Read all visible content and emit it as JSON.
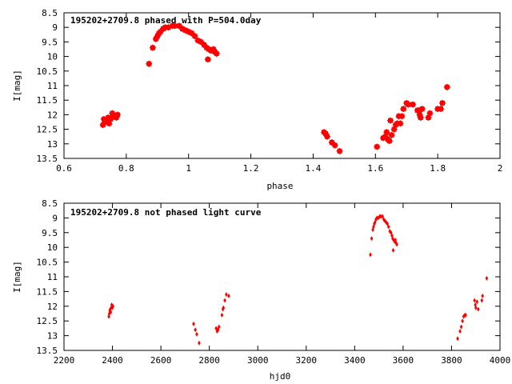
{
  "chart_data": [
    {
      "type": "scatter",
      "title": "195202+2709.8 phased with P=504.0day",
      "xlabel": "phase",
      "ylabel": "I[mag]",
      "xlim": [
        0.6,
        2.0
      ],
      "ylim": [
        8.5,
        13.5
      ],
      "y_inverted": true,
      "grid": false,
      "marker": "filled-square",
      "color": "#ff0000",
      "xticks": [
        "0.6",
        "0.8",
        "1",
        "1.2",
        "1.4",
        "1.6",
        "1.8",
        "2"
      ],
      "xtick_values": [
        0.6,
        0.8,
        1.0,
        1.2,
        1.4,
        1.6,
        1.8,
        2.0
      ],
      "yticks": [
        "8.5",
        "9",
        "9.5",
        "10",
        "10.5",
        "11",
        "11.5",
        "12",
        "12.5",
        "13",
        "13.5"
      ],
      "ytick_values": [
        8.5,
        9,
        9.5,
        10,
        10.5,
        11,
        11.5,
        12,
        12.5,
        13,
        13.5
      ],
      "points": [
        {
          "x": 0.725,
          "y": 12.35
        },
        {
          "x": 0.728,
          "y": 12.15
        },
        {
          "x": 0.732,
          "y": 12.25
        },
        {
          "x": 0.738,
          "y": 12.2
        },
        {
          "x": 0.742,
          "y": 12.1
        },
        {
          "x": 0.745,
          "y": 12.3
        },
        {
          "x": 0.75,
          "y": 12.15
        },
        {
          "x": 0.755,
          "y": 11.95
        },
        {
          "x": 0.76,
          "y": 12.05
        },
        {
          "x": 0.768,
          "y": 12.1
        },
        {
          "x": 0.772,
          "y": 12.0
        },
        {
          "x": 0.873,
          "y": 10.25
        },
        {
          "x": 0.885,
          "y": 9.7
        },
        {
          "x": 0.895,
          "y": 9.4
        },
        {
          "x": 0.9,
          "y": 9.3
        },
        {
          "x": 0.905,
          "y": 9.2
        },
        {
          "x": 0.91,
          "y": 9.15
        },
        {
          "x": 0.918,
          "y": 9.05
        },
        {
          "x": 0.925,
          "y": 9.0
        },
        {
          "x": 0.935,
          "y": 9.0
        },
        {
          "x": 0.948,
          "y": 8.95
        },
        {
          "x": 0.955,
          "y": 8.95
        },
        {
          "x": 0.97,
          "y": 8.95
        },
        {
          "x": 0.98,
          "y": 9.05
        },
        {
          "x": 0.99,
          "y": 9.1
        },
        {
          "x": 1.0,
          "y": 9.15
        },
        {
          "x": 1.01,
          "y": 9.2
        },
        {
          "x": 1.02,
          "y": 9.3
        },
        {
          "x": 1.03,
          "y": 9.45
        },
        {
          "x": 1.04,
          "y": 9.5
        },
        {
          "x": 1.05,
          "y": 9.6
        },
        {
          "x": 1.058,
          "y": 9.7
        },
        {
          "x": 1.062,
          "y": 10.1
        },
        {
          "x": 1.065,
          "y": 9.75
        },
        {
          "x": 1.072,
          "y": 9.8
        },
        {
          "x": 1.08,
          "y": 9.75
        },
        {
          "x": 1.085,
          "y": 9.85
        },
        {
          "x": 1.09,
          "y": 9.9
        },
        {
          "x": 1.435,
          "y": 12.6
        },
        {
          "x": 1.44,
          "y": 12.65
        },
        {
          "x": 1.445,
          "y": 12.75
        },
        {
          "x": 1.46,
          "y": 12.95
        },
        {
          "x": 1.47,
          "y": 13.05
        },
        {
          "x": 1.485,
          "y": 13.25
        },
        {
          "x": 1.605,
          "y": 13.1
        },
        {
          "x": 1.625,
          "y": 12.8
        },
        {
          "x": 1.632,
          "y": 12.75
        },
        {
          "x": 1.636,
          "y": 12.6
        },
        {
          "x": 1.64,
          "y": 12.85
        },
        {
          "x": 1.645,
          "y": 12.9
        },
        {
          "x": 1.648,
          "y": 12.2
        },
        {
          "x": 1.652,
          "y": 12.7
        },
        {
          "x": 1.66,
          "y": 12.5
        },
        {
          "x": 1.665,
          "y": 12.35
        },
        {
          "x": 1.67,
          "y": 12.3
        },
        {
          "x": 1.675,
          "y": 12.05
        },
        {
          "x": 1.68,
          "y": 12.3
        },
        {
          "x": 1.685,
          "y": 12.05
        },
        {
          "x": 1.69,
          "y": 11.8
        },
        {
          "x": 1.7,
          "y": 11.6
        },
        {
          "x": 1.705,
          "y": 11.65
        },
        {
          "x": 1.72,
          "y": 11.65
        },
        {
          "x": 1.735,
          "y": 11.85
        },
        {
          "x": 1.74,
          "y": 11.85
        },
        {
          "x": 1.742,
          "y": 12.0
        },
        {
          "x": 1.745,
          "y": 12.1
        },
        {
          "x": 1.75,
          "y": 11.8
        },
        {
          "x": 1.77,
          "y": 12.1
        },
        {
          "x": 1.775,
          "y": 11.95
        },
        {
          "x": 1.8,
          "y": 11.8
        },
        {
          "x": 1.81,
          "y": 11.8
        },
        {
          "x": 1.815,
          "y": 11.6
        },
        {
          "x": 1.83,
          "y": 11.05
        }
      ]
    },
    {
      "type": "scatter",
      "title": "195202+2709.8 not phased light curve",
      "xlabel": "hjd0",
      "ylabel": "I[mag]",
      "xlim": [
        2200,
        4000
      ],
      "ylim": [
        8.5,
        13.5
      ],
      "y_inverted": true,
      "grid": false,
      "marker": "small-filled-diamond",
      "color": "#ff0000",
      "xticks": [
        "2200",
        "2400",
        "2600",
        "2800",
        "3000",
        "3200",
        "3400",
        "3600",
        "3800",
        "4000"
      ],
      "xtick_values": [
        2200,
        2400,
        2600,
        2800,
        3000,
        3200,
        3400,
        3600,
        3800,
        4000
      ],
      "yticks": [
        "8.5",
        "9",
        "9.5",
        "10",
        "10.5",
        "11",
        "11.5",
        "12",
        "12.5",
        "13",
        "13.5"
      ],
      "ytick_values": [
        8.5,
        9,
        9.5,
        10,
        10.5,
        11,
        11.5,
        12,
        12.5,
        13,
        13.5
      ],
      "points": [
        {
          "x": 2385,
          "y": 12.35
        },
        {
          "x": 2387,
          "y": 12.25
        },
        {
          "x": 2389,
          "y": 12.15
        },
        {
          "x": 2391,
          "y": 12.1
        },
        {
          "x": 2393,
          "y": 12.2
        },
        {
          "x": 2395,
          "y": 12.05
        },
        {
          "x": 2397,
          "y": 11.95
        },
        {
          "x": 2400,
          "y": 12.05
        },
        {
          "x": 2402,
          "y": 12.0
        },
        {
          "x": 2735,
          "y": 12.6
        },
        {
          "x": 2742,
          "y": 12.8
        },
        {
          "x": 2748,
          "y": 12.95
        },
        {
          "x": 2758,
          "y": 13.25
        },
        {
          "x": 2828,
          "y": 12.75
        },
        {
          "x": 2832,
          "y": 12.85
        },
        {
          "x": 2836,
          "y": 12.8
        },
        {
          "x": 2840,
          "y": 12.7
        },
        {
          "x": 2852,
          "y": 12.3
        },
        {
          "x": 2856,
          "y": 12.1
        },
        {
          "x": 2858,
          "y": 12.05
        },
        {
          "x": 2864,
          "y": 11.8
        },
        {
          "x": 2870,
          "y": 11.6
        },
        {
          "x": 2880,
          "y": 11.65
        },
        {
          "x": 3465,
          "y": 10.25
        },
        {
          "x": 3470,
          "y": 9.7
        },
        {
          "x": 3475,
          "y": 9.4
        },
        {
          "x": 3478,
          "y": 9.3
        },
        {
          "x": 3481,
          "y": 9.2
        },
        {
          "x": 3484,
          "y": 9.15
        },
        {
          "x": 3488,
          "y": 9.05
        },
        {
          "x": 3492,
          "y": 9.0
        },
        {
          "x": 3498,
          "y": 9.0
        },
        {
          "x": 3504,
          "y": 8.95
        },
        {
          "x": 3508,
          "y": 8.95
        },
        {
          "x": 3515,
          "y": 8.95
        },
        {
          "x": 3520,
          "y": 9.05
        },
        {
          "x": 3525,
          "y": 9.1
        },
        {
          "x": 3530,
          "y": 9.15
        },
        {
          "x": 3535,
          "y": 9.2
        },
        {
          "x": 3540,
          "y": 9.3
        },
        {
          "x": 3545,
          "y": 9.45
        },
        {
          "x": 3550,
          "y": 9.5
        },
        {
          "x": 3554,
          "y": 9.6
        },
        {
          "x": 3557,
          "y": 9.7
        },
        {
          "x": 3559,
          "y": 10.1
        },
        {
          "x": 3561,
          "y": 9.75
        },
        {
          "x": 3565,
          "y": 9.8
        },
        {
          "x": 3568,
          "y": 9.75
        },
        {
          "x": 3571,
          "y": 9.85
        },
        {
          "x": 3574,
          "y": 9.9
        },
        {
          "x": 3825,
          "y": 13.1
        },
        {
          "x": 3835,
          "y": 12.85
        },
        {
          "x": 3840,
          "y": 12.7
        },
        {
          "x": 3845,
          "y": 12.5
        },
        {
          "x": 3850,
          "y": 12.35
        },
        {
          "x": 3855,
          "y": 12.3
        },
        {
          "x": 3858,
          "y": 12.3
        },
        {
          "x": 3895,
          "y": 11.8
        },
        {
          "x": 3898,
          "y": 11.95
        },
        {
          "x": 3900,
          "y": 12.05
        },
        {
          "x": 3905,
          "y": 11.85
        },
        {
          "x": 3910,
          "y": 12.1
        },
        {
          "x": 3925,
          "y": 11.8
        },
        {
          "x": 3928,
          "y": 11.65
        },
        {
          "x": 3945,
          "y": 11.05
        }
      ]
    }
  ]
}
